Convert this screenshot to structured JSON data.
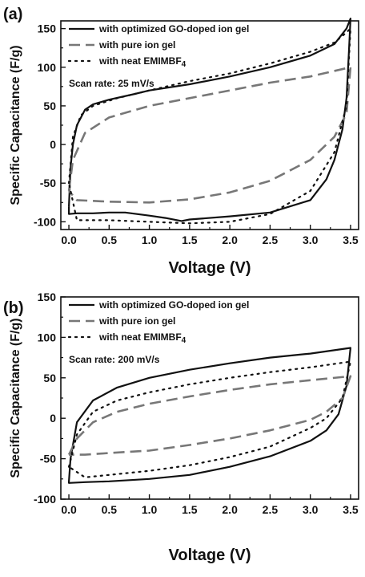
{
  "chart_data": [
    {
      "type": "line",
      "panel_label": "(a)",
      "xlabel": "Voltage (V)",
      "ylabel": "Specific Capacitance (F/g)",
      "xlim": [
        -0.1,
        3.6
      ],
      "ylim": [
        -110,
        160
      ],
      "xticks": [
        0.0,
        0.5,
        1.0,
        1.5,
        2.0,
        2.5,
        3.0,
        3.5
      ],
      "xtick_labels": [
        "0.0",
        "0.5",
        "1.0",
        "1.5",
        "2.0",
        "2.5",
        "3.0",
        "3.5"
      ],
      "yticks": [
        -100,
        -50,
        0,
        50,
        100,
        150
      ],
      "ytick_labels": [
        "-100",
        "-50",
        "0",
        "50",
        "100",
        "150"
      ],
      "annotation": "Scan rate: 25 mV/s",
      "legend_position": "top-left",
      "series": [
        {
          "name": "with optimized GO-doped ion gel",
          "style": "solid",
          "color": "#111111",
          "x": [
            0.0,
            0.02,
            0.05,
            0.1,
            0.2,
            0.3,
            0.5,
            0.8,
            1.0,
            1.5,
            2.0,
            2.5,
            3.0,
            3.3,
            3.45,
            3.5,
            3.48,
            3.45,
            3.4,
            3.3,
            3.2,
            3.0,
            2.5,
            2.0,
            1.5,
            1.4,
            1.2,
            1.0,
            0.7,
            0.5,
            0.3,
            0.1,
            0.0,
            0.0
          ],
          "y": [
            -80,
            -30,
            0,
            25,
            45,
            52,
            58,
            65,
            70,
            78,
            88,
            100,
            115,
            130,
            150,
            163,
            120,
            60,
            20,
            -20,
            -45,
            -72,
            -88,
            -93,
            -97,
            -99,
            -95,
            -92,
            -88,
            -88,
            -89,
            -89,
            -90,
            -80
          ]
        },
        {
          "name": "with pure ion gel",
          "style": "dash",
          "color": "#777777",
          "x": [
            0.0,
            0.05,
            0.2,
            0.5,
            1.0,
            1.5,
            2.0,
            2.5,
            3.0,
            3.5,
            3.45,
            3.3,
            3.0,
            2.5,
            2.0,
            1.5,
            1.0,
            0.5,
            0.1,
            0.0
          ],
          "y": [
            -60,
            -20,
            15,
            35,
            50,
            60,
            70,
            80,
            88,
            100,
            40,
            10,
            -20,
            -47,
            -62,
            -71,
            -75,
            -74,
            -72,
            -60
          ]
        },
        {
          "name": "with neat EMIMBF4",
          "style": "dot",
          "color": "#111111",
          "x": [
            0.0,
            0.05,
            0.15,
            0.3,
            0.6,
            1.0,
            1.5,
            2.0,
            2.5,
            3.0,
            3.3,
            3.45,
            3.5,
            3.45,
            3.3,
            3.0,
            2.5,
            2.0,
            1.5,
            1.0,
            0.5,
            0.1,
            0.0
          ],
          "y": [
            -50,
            10,
            38,
            50,
            60,
            70,
            82,
            92,
            105,
            120,
            132,
            145,
            150,
            50,
            -10,
            -60,
            -90,
            -100,
            -102,
            -100,
            -98,
            -98,
            -50
          ]
        }
      ]
    },
    {
      "type": "line",
      "panel_label": "(b)",
      "xlabel": "Voltage (V)",
      "ylabel": "Specific Capacitance (F/g)",
      "xlim": [
        -0.1,
        3.6
      ],
      "ylim": [
        -100,
        150
      ],
      "xticks": [
        0.0,
        0.5,
        1.0,
        1.5,
        2.0,
        2.5,
        3.0,
        3.5
      ],
      "xtick_labels": [
        "0.0",
        "0.5",
        "1.0",
        "1.5",
        "2.0",
        "2.5",
        "3.0",
        "3.5"
      ],
      "yticks": [
        -100,
        -50,
        0,
        50,
        100,
        150
      ],
      "ytick_labels": [
        "-100",
        "-50",
        "0",
        "50",
        "100",
        "150"
      ],
      "annotation": "Scan rate: 200 mV/s",
      "legend_position": "top-left",
      "series": [
        {
          "name": "with optimized GO-doped ion gel",
          "style": "solid",
          "color": "#111111",
          "x": [
            0.0,
            0.02,
            0.1,
            0.3,
            0.6,
            1.0,
            1.5,
            2.0,
            2.5,
            3.0,
            3.5,
            3.45,
            3.35,
            3.2,
            3.0,
            2.5,
            2.0,
            1.5,
            1.0,
            0.5,
            0.2,
            0.0,
            0.0
          ],
          "y": [
            -78,
            -50,
            -5,
            22,
            38,
            50,
            60,
            68,
            75,
            80,
            87,
            40,
            5,
            -15,
            -28,
            -47,
            -60,
            -70,
            -75,
            -78,
            -79,
            -80,
            -78
          ]
        },
        {
          "name": "with pure ion gel",
          "style": "dash",
          "color": "#777777",
          "x": [
            0.0,
            0.1,
            0.3,
            0.6,
            1.0,
            1.5,
            2.0,
            2.5,
            3.0,
            3.5,
            3.4,
            3.2,
            3.0,
            2.5,
            2.0,
            1.5,
            1.0,
            0.5,
            0.2,
            0.0
          ],
          "y": [
            -45,
            -25,
            -5,
            8,
            18,
            27,
            35,
            42,
            47,
            52,
            25,
            8,
            -2,
            -15,
            -25,
            -33,
            -40,
            -43,
            -45,
            -45
          ]
        },
        {
          "name": "with neat EMIMBF4",
          "style": "dot",
          "color": "#111111",
          "x": [
            0.0,
            0.1,
            0.3,
            0.6,
            1.0,
            1.5,
            2.0,
            2.5,
            3.0,
            3.5,
            3.4,
            3.2,
            3.0,
            2.5,
            2.0,
            1.5,
            1.0,
            0.5,
            0.2,
            0.0
          ],
          "y": [
            -60,
            -20,
            8,
            22,
            32,
            42,
            50,
            57,
            63,
            70,
            25,
            0,
            -12,
            -35,
            -48,
            -58,
            -65,
            -70,
            -73,
            -60
          ]
        }
      ]
    }
  ]
}
